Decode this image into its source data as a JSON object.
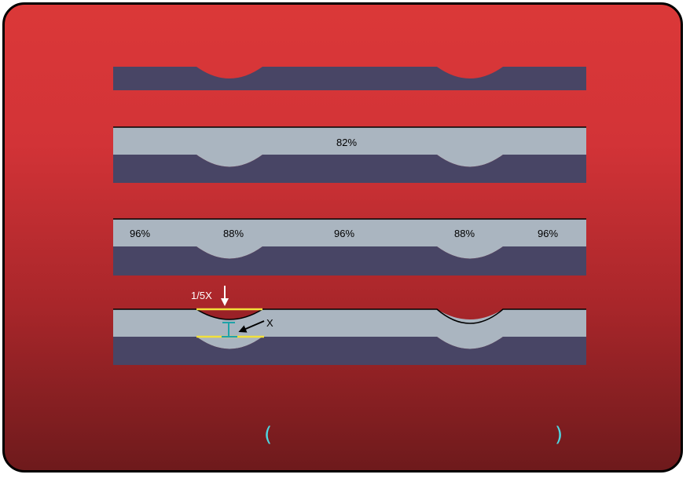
{
  "diagram": {
    "panel2": {
      "label": "82%"
    },
    "panel3": {
      "labels": [
        "96%",
        "88%",
        "96%",
        "88%",
        "96%"
      ]
    },
    "panel4": {
      "depth_label": "1/5X",
      "thickness_label": "X"
    },
    "brackets": {
      "left": "(",
      "right": ")"
    }
  },
  "colors": {
    "background_top": "#db3838",
    "background_bottom": "#6e1a1c",
    "substrate": "#484565",
    "film": "#aab5c0",
    "highlight": "#f2e03a",
    "measure": "#1fa3a8",
    "bracket": "#4fd6e0"
  }
}
